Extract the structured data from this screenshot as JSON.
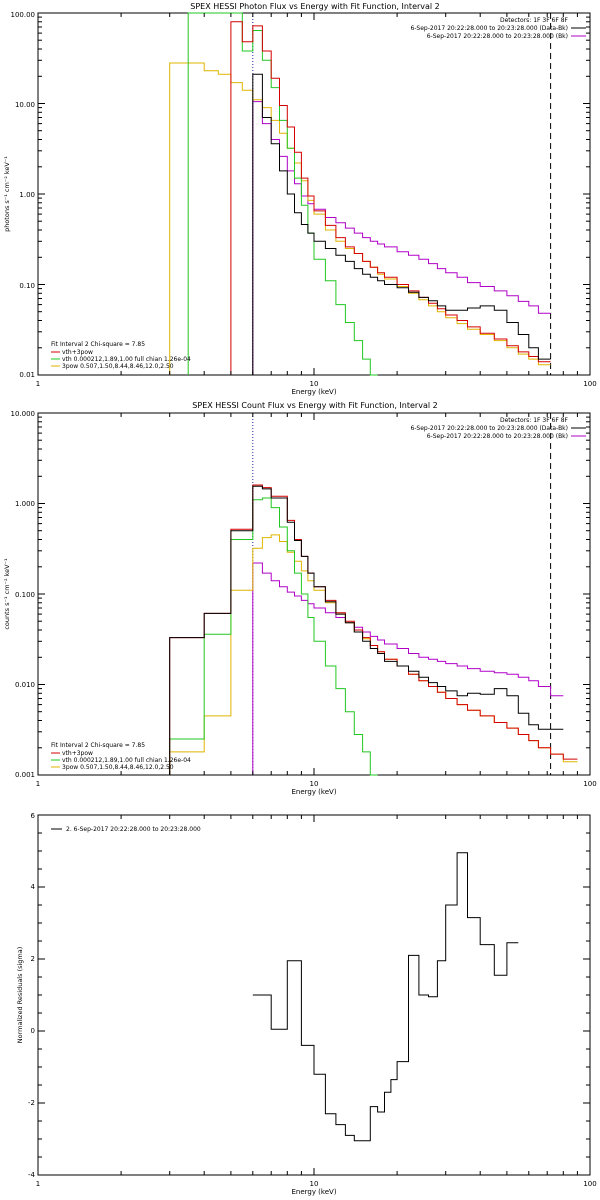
{
  "colors": {
    "data": "#000000",
    "model_total": "#d40000",
    "model_vth": "#22c822",
    "model_3pow": "#e0b400",
    "background": "#b000c8",
    "interval_marker": "#2222aa"
  },
  "chart_data": [
    {
      "type": "line",
      "title": "SPEX HESSI Photon Flux vs Energy with Fit Function, Interval 2",
      "xlabel": "Energy (keV)",
      "ylabel": "photons s⁻¹ cm⁻² keV⁻¹",
      "xscale": "log",
      "yscale": "log",
      "xlim": [
        1,
        100
      ],
      "ylim": [
        0.01,
        100
      ],
      "xtick_labels": [
        "1",
        "10",
        "100"
      ],
      "ytick_labels": [
        "0.01",
        "0.10",
        "1.00",
        "10.00",
        "100.00"
      ],
      "legend_right": [
        "Detectors: 1F 3F 6F 8F",
        "6-Sep-2017 20:22:28.000 to 20:23:28.000 (Data-Bk)",
        "6-Sep-2017 20:22:28.000 to 20:23:28.000 (Bk)"
      ],
      "legend_left": [
        "Fit Interval 2   Chi-square = 7.85",
        "vth+3pow",
        "vth 0.000212,1.89,1.00  full chian 1.26e-04",
        "3pow 0.507,1.50,8.44,8.46,12.0,2.50"
      ],
      "markers_x": {
        "dotted": 6.0,
        "dashed": 72.0
      },
      "edges": [
        3.0,
        3.5,
        4.0,
        4.5,
        5.0,
        5.5,
        6.0,
        6.5,
        7.0,
        7.5,
        8.0,
        8.5,
        9.0,
        9.5,
        10.0,
        11.0,
        12.0,
        13.0,
        14.0,
        15.0,
        16.0,
        17.0,
        18.0,
        20.0,
        22.0,
        24.0,
        26.0,
        28.0,
        30.0,
        33.0,
        36.0,
        40.0,
        45.0,
        50.0,
        55.0,
        60.0,
        65.0,
        72.0
      ],
      "series": [
        {
          "key": "data",
          "name": "Data-Bk",
          "values": [
            null,
            null,
            null,
            null,
            null,
            null,
            21.0,
            7.0,
            3.6,
            1.8,
            1.0,
            0.62,
            0.46,
            0.37,
            0.3,
            0.25,
            0.21,
            0.18,
            0.15,
            0.13,
            0.12,
            0.11,
            0.1,
            0.092,
            0.082,
            0.072,
            0.066,
            0.058,
            0.052,
            0.052,
            0.055,
            0.058,
            0.052,
            0.038,
            0.028,
            0.02,
            0.015
          ]
        },
        {
          "key": "model_total",
          "name": "vth+3pow",
          "values": [
            null,
            null,
            null,
            null,
            80.0,
            48.0,
            72.0,
            38.0,
            19.0,
            9.5,
            5.5,
            2.9,
            1.5,
            0.95,
            0.65,
            0.45,
            0.33,
            0.26,
            0.22,
            0.18,
            0.155,
            0.135,
            0.12,
            0.1,
            0.085,
            0.072,
            0.062,
            0.054,
            0.046,
            0.04,
            0.034,
            0.029,
            0.025,
            0.021,
            0.018,
            0.016,
            0.014
          ]
        },
        {
          "key": "model_vth",
          "name": "vth",
          "values": [
            null,
            100.0,
            100.0,
            100.0,
            100.0,
            38.0,
            64.0,
            30.0,
            15.0,
            6.5,
            3.2,
            1.5,
            0.75,
            0.37,
            0.19,
            0.11,
            0.06,
            0.038,
            0.024,
            0.015,
            0.01,
            null,
            null,
            null,
            null,
            null,
            null,
            null,
            null,
            null,
            null,
            null,
            null,
            null,
            null,
            null,
            null
          ]
        },
        {
          "key": "model_3pow",
          "name": "3pow",
          "values": [
            28.0,
            28.0,
            23.0,
            21.0,
            17.0,
            14.0,
            11.0,
            9.0,
            6.5,
            4.7,
            3.2,
            2.2,
            1.4,
            0.85,
            0.6,
            0.4,
            0.3,
            0.25,
            0.22,
            0.18,
            0.155,
            0.13,
            0.115,
            0.095,
            0.08,
            0.068,
            0.058,
            0.05,
            0.043,
            0.037,
            0.032,
            0.028,
            0.024,
            0.02,
            0.017,
            0.015,
            0.013
          ]
        },
        {
          "key": "background",
          "name": "Bk",
          "values": [
            null,
            null,
            null,
            null,
            null,
            null,
            10.5,
            6.0,
            4.0,
            2.6,
            1.8,
            1.3,
            0.95,
            0.78,
            0.68,
            0.55,
            0.48,
            0.42,
            0.37,
            0.33,
            0.3,
            0.28,
            0.26,
            0.23,
            0.21,
            0.19,
            0.17,
            0.15,
            0.135,
            0.12,
            0.105,
            0.095,
            0.085,
            0.075,
            0.065,
            0.058,
            0.048
          ]
        }
      ]
    },
    {
      "type": "line",
      "title": "SPEX HESSI Count Flux vs Energy with Fit Function, Interval 2",
      "xlabel": "Energy (keV)",
      "ylabel": "counts s⁻¹ cm⁻² keV⁻¹",
      "xscale": "log",
      "yscale": "log",
      "xlim": [
        1,
        100
      ],
      "ylim": [
        0.001,
        10
      ],
      "xtick_labels": [
        "1",
        "10",
        "100"
      ],
      "ytick_labels": [
        "0.001",
        "0.010",
        "0.100",
        "1.000",
        "10.000"
      ],
      "legend_right": [
        "Detectors: 1F 3F 6F 8F",
        "6-Sep-2017 20:22:28.000 to 20:23:28.000 (Data-Bk)",
        "6-Sep-2017 20:22:28.000 to 20:23:28.000 (Bk)"
      ],
      "legend_left": [
        "Fit Interval 2   Chi-square = 7.85",
        "vth+3pow",
        "vth 0.000212,1.89,1.00  full chian 1.26e-04",
        "3pow 0.507,1.50,8.44,8.46,12.0,2.50"
      ],
      "markers_x": {
        "dotted": 6.0,
        "dashed": 72.0
      },
      "edges": [
        3.0,
        4.0,
        5.0,
        6.0,
        6.5,
        7.0,
        7.5,
        8.0,
        8.5,
        9.0,
        9.5,
        10.0,
        11.0,
        12.0,
        13.0,
        14.0,
        15.0,
        16.0,
        17.0,
        18.0,
        20.0,
        22.0,
        24.0,
        26.0,
        28.0,
        30.0,
        33.0,
        36.0,
        40.0,
        45.0,
        50.0,
        55.0,
        60.0,
        65.0,
        72.0,
        80.0,
        90.0
      ],
      "series": [
        {
          "key": "data",
          "name": "Data-Bk",
          "values": [
            0.033,
            0.061,
            0.5,
            1.55,
            1.45,
            1.15,
            1.15,
            0.62,
            0.39,
            0.26,
            0.17,
            0.12,
            0.082,
            0.06,
            0.048,
            0.038,
            0.03,
            0.025,
            0.022,
            0.018,
            0.016,
            0.014,
            0.012,
            0.0105,
            0.0095,
            0.0085,
            0.0075,
            0.008,
            0.0078,
            0.009,
            0.0075,
            0.0048,
            0.0036,
            0.0032,
            0.0032,
            null
          ]
        },
        {
          "key": "model_total",
          "name": "vth+3pow",
          "values": [
            0.033,
            0.061,
            0.52,
            1.6,
            1.5,
            1.2,
            1.2,
            0.65,
            0.4,
            0.26,
            0.17,
            0.12,
            0.085,
            0.062,
            0.05,
            0.04,
            0.033,
            0.027,
            0.023,
            0.019,
            0.016,
            0.013,
            0.011,
            0.0095,
            0.0082,
            0.007,
            0.006,
            0.0052,
            0.0045,
            0.0038,
            0.0033,
            0.0028,
            0.0024,
            0.002,
            0.0017,
            0.0015
          ]
        },
        {
          "key": "model_vth",
          "name": "vth",
          "values": [
            0.0025,
            0.036,
            0.4,
            1.1,
            1.15,
            0.9,
            0.55,
            0.3,
            0.17,
            0.1,
            0.055,
            0.03,
            0.016,
            0.009,
            0.005,
            0.0028,
            0.0018,
            0.001,
            null,
            null,
            null,
            null,
            null,
            null,
            null,
            null,
            null,
            null,
            null,
            null,
            null,
            null,
            null,
            null,
            null,
            null
          ]
        },
        {
          "key": "model_3pow",
          "name": "3pow",
          "values": [
            0.0018,
            0.0045,
            0.11,
            0.32,
            0.42,
            0.45,
            0.38,
            0.29,
            0.23,
            0.18,
            0.14,
            0.11,
            0.08,
            0.06,
            0.048,
            0.038,
            0.032,
            0.027,
            0.023,
            0.019,
            0.016,
            0.013,
            0.011,
            0.0095,
            0.0082,
            0.007,
            0.006,
            0.0052,
            0.0045,
            0.0038,
            0.0033,
            0.0028,
            0.0024,
            0.002,
            0.0017,
            0.0014
          ]
        },
        {
          "key": "background",
          "name": "Bk",
          "values": [
            null,
            null,
            null,
            0.22,
            0.17,
            0.14,
            0.12,
            0.105,
            0.095,
            0.085,
            0.078,
            0.07,
            0.062,
            0.055,
            0.048,
            0.043,
            0.038,
            0.034,
            0.031,
            0.028,
            0.025,
            0.022,
            0.02,
            0.019,
            0.018,
            0.017,
            0.016,
            0.015,
            0.014,
            0.0135,
            0.013,
            0.012,
            0.011,
            0.0095,
            0.0075,
            null
          ]
        }
      ]
    },
    {
      "type": "line",
      "title": "",
      "xlabel": "Energy (keV)",
      "ylabel": "Normalized Residuals (sigma)",
      "xscale": "log",
      "yscale": "linear",
      "xlim": [
        1,
        100
      ],
      "ylim": [
        -4,
        6
      ],
      "xtick_labels": [
        "1",
        "10",
        "100"
      ],
      "ytick_labels": [
        "-4",
        "-2",
        "0",
        "2",
        "4",
        "6"
      ],
      "yticks": [
        -4,
        -2,
        0,
        2,
        4,
        6
      ],
      "legend_left": [
        "2.  6-Sep-2017 20:22:28.000 to 20:23:28.000"
      ],
      "edges": [
        6.0,
        7.0,
        8.0,
        9.0,
        10.0,
        11.0,
        12.0,
        13.0,
        14.0,
        15.0,
        16.0,
        17.0,
        18.0,
        19.0,
        20.0,
        22.0,
        24.0,
        26.0,
        28.0,
        30.0,
        33.0,
        36.0,
        40.0,
        45.0,
        50.0,
        55.0,
        60.0,
        65.0,
        72.0
      ],
      "series": [
        {
          "key": "data",
          "name": "Residuals",
          "values": [
            1.0,
            0.05,
            1.95,
            -0.4,
            -1.2,
            -2.3,
            -2.6,
            -2.9,
            -3.05,
            -3.05,
            -2.1,
            -2.25,
            -1.7,
            -1.35,
            -0.85,
            2.1,
            1.0,
            0.95,
            1.95,
            3.5,
            4.95,
            3.15,
            2.4,
            1.55,
            2.45,
            null,
            null,
            null
          ]
        }
      ]
    }
  ]
}
